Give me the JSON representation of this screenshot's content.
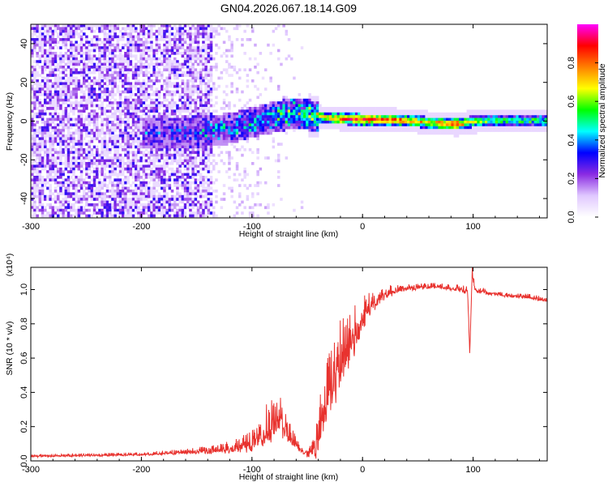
{
  "title": "GN04.2026.067.18.14.G09",
  "chart_data": [
    {
      "type": "heatmap",
      "xlabel": "Height of straight line (km)",
      "ylabel": "Frequency (Hz)",
      "xlim": [
        -300,
        167
      ],
      "ylim": [
        -50,
        50
      ],
      "x_ticks": [
        -300,
        -200,
        -100,
        0,
        100
      ],
      "x_tick_labels": [
        "-300",
        "-200",
        "-100",
        "0",
        "100"
      ],
      "y_ticks": [
        -40,
        -20,
        0,
        20,
        40
      ],
      "y_tick_labels": [
        "-40",
        "-20",
        "0",
        "20",
        "40"
      ],
      "colorbar": {
        "label": "Normalized spectral amplitude",
        "range": [
          0,
          1
        ],
        "ticks": [
          0.0,
          0.2,
          0.4,
          0.6,
          0.8
        ],
        "tick_labels": [
          "0.0",
          "0.2",
          "0.4",
          "0.6",
          "0.8"
        ],
        "colormap": [
          "#ffffff",
          "#e0c8ff",
          "#8a2be2",
          "#0000ff",
          "#00ffff",
          "#00ff00",
          "#ffff00",
          "#ff8000",
          "#ff0000",
          "#ff00ff"
        ]
      },
      "ridge": {
        "description": "dominant frequency track",
        "x": [
          -190,
          -150,
          -120,
          -100,
          -80,
          -60,
          -50,
          -40,
          -20,
          0,
          30,
          60,
          85,
          100,
          130,
          167
        ],
        "center_hz": [
          -7,
          -6,
          -4,
          -1,
          2,
          4,
          3,
          2,
          1,
          0.5,
          0.5,
          -1,
          -2,
          -0.5,
          0,
          0
        ],
        "amplitude": [
          0.3,
          0.35,
          0.4,
          0.45,
          0.5,
          0.55,
          0.6,
          0.65,
          0.8,
          0.9,
          0.85,
          0.7,
          0.9,
          0.6,
          0.55,
          0.55
        ]
      },
      "noise_region": {
        "x_from": -300,
        "x_to": -135,
        "amplitude": 0.2
      }
    },
    {
      "type": "line",
      "xlabel": "Height of straight line (km)",
      "ylabel": "SNR (10 * v/v)",
      "y_multiplier": "(x10⁴)",
      "xlim": [
        -300,
        167
      ],
      "ylim": [
        0,
        1.13
      ],
      "x_ticks": [
        -300,
        -200,
        -100,
        0,
        100
      ],
      "x_tick_labels": [
        "-300",
        "-200",
        "-100",
        "0",
        "100"
      ],
      "y_ticks": [
        0.0,
        0.2,
        0.4,
        0.6,
        0.8,
        1.0
      ],
      "y_tick_labels": [
        "0.0",
        "0.2",
        "0.4",
        "0.6",
        "0.8",
        "1.0"
      ],
      "color": "#e8322e",
      "series": [
        {
          "name": "SNR",
          "x": [
            -300,
            -250,
            -200,
            -170,
            -150,
            -130,
            -110,
            -95,
            -88,
            -82,
            -75,
            -70,
            -62,
            -55,
            -48,
            -42,
            -38,
            -33,
            -28,
            -20,
            -12,
            -5,
            0,
            10,
            20,
            30,
            40,
            55,
            70,
            85,
            95,
            97,
            99,
            102,
            110,
            130,
            150,
            167
          ],
          "y": [
            0.03,
            0.035,
            0.04,
            0.05,
            0.06,
            0.07,
            0.09,
            0.14,
            0.2,
            0.24,
            0.26,
            0.22,
            0.12,
            0.06,
            0.05,
            0.1,
            0.25,
            0.38,
            0.5,
            0.62,
            0.72,
            0.8,
            0.85,
            0.93,
            0.98,
            1.0,
            1.01,
            1.02,
            1.02,
            1.01,
            1.0,
            0.62,
            1.1,
            1.0,
            0.99,
            0.97,
            0.96,
            0.94
          ],
          "noise": [
            0.01,
            0.01,
            0.01,
            0.015,
            0.02,
            0.03,
            0.05,
            0.08,
            0.12,
            0.14,
            0.12,
            0.1,
            0.05,
            0.02,
            0.04,
            0.1,
            0.15,
            0.2,
            0.22,
            0.22,
            0.2,
            0.18,
            0.12,
            0.06,
            0.04,
            0.03,
            0.02,
            0.02,
            0.02,
            0.02,
            0.03,
            0.0,
            0.04,
            0.02,
            0.02,
            0.015,
            0.015,
            0.015
          ]
        }
      ]
    }
  ]
}
